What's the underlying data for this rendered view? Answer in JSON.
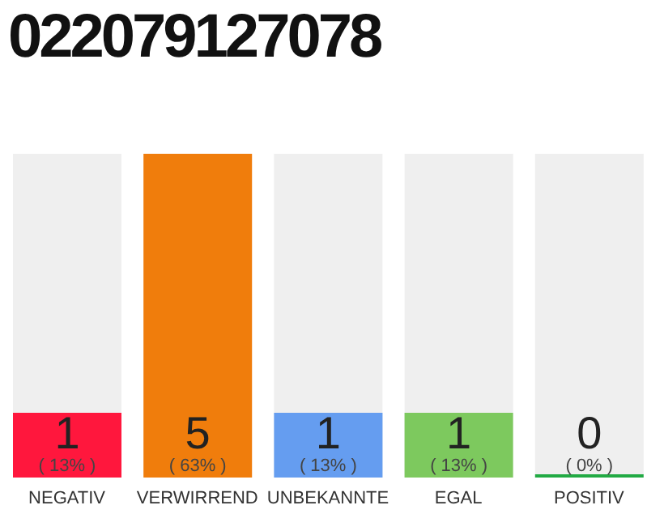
{
  "chart_data": {
    "type": "bar",
    "title": "022079127078",
    "categories": [
      "NEGATIV",
      "VERWIRREND",
      "UNBEKANNTE",
      "EGAL",
      "POSITIV"
    ],
    "values": [
      1,
      5,
      1,
      1,
      0
    ],
    "colors": [
      "#ff173d",
      "#f07d0c",
      "#659df0",
      "#7dc95e",
      "#22aa44"
    ],
    "value_labels": [
      "1\n( 13% )",
      "5\n( 63% )",
      "1\n( 13% )",
      "1\n( 13% )",
      "0\n( 0% )"
    ]
  }
}
